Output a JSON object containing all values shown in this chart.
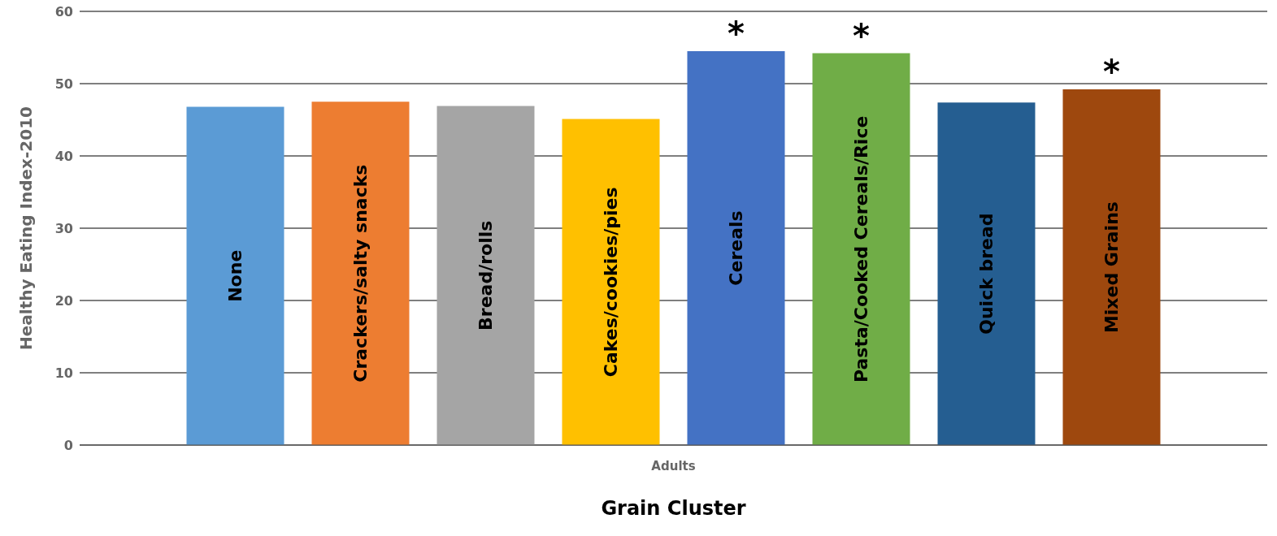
{
  "chart_data": {
    "type": "bar",
    "xlabel": "Grain Cluster",
    "ylabel": "Healthy Eating Index-2010",
    "categories": [
      "Adults"
    ],
    "series": [
      {
        "name": "None",
        "color": "#5b9bd5",
        "values": [
          46.8
        ]
      },
      {
        "name": "Crackers/salty snacks",
        "color": "#ed7d31",
        "values": [
          47.5
        ]
      },
      {
        "name": "Bread/rolls",
        "color": "#a5a5a5",
        "values": [
          46.9
        ]
      },
      {
        "name": "Cakes/cookies/pies",
        "color": "#ffc000",
        "values": [
          45.1
        ]
      },
      {
        "name": "Cereals",
        "color": "#4472c4",
        "values": [
          54.5
        ],
        "value_labels": [
          "*"
        ]
      },
      {
        "name": "Pasta/Cooked Cereals/Rice",
        "color": "#70ad47",
        "values": [
          54.2
        ],
        "value_labels": [
          "*"
        ]
      },
      {
        "name": "Quick bread",
        "color": "#255e91",
        "values": [
          47.4
        ]
      },
      {
        "name": "Mixed Grains",
        "color": "#9e480e",
        "values": [
          49.2
        ],
        "value_labels": [
          "*"
        ]
      }
    ],
    "ylim": [
      0,
      60
    ],
    "yticks": [
      0,
      10,
      20,
      30,
      40,
      50,
      60
    ],
    "grid": "y",
    "legend": false
  }
}
